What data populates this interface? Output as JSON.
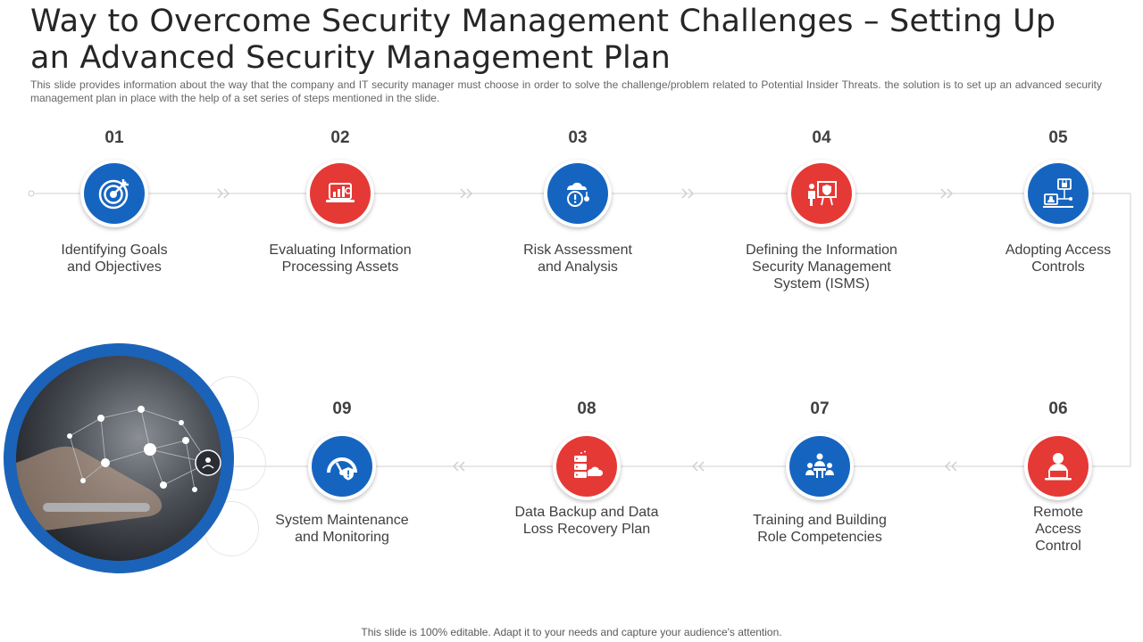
{
  "slide": {
    "title": "Way to Overcome Security Management Challenges – Setting Up an Advanced Security Management Plan",
    "subtitle": "This slide provides information about the way that the company and IT security manager must choose in order to solve the challenge/problem related to Potential Insider Threats. the solution is to set up an advanced security management plan in place with the help of a set series of steps mentioned in the slide.",
    "footer": "This slide is 100% editable. Adapt it to your needs and capture your audience's attention."
  },
  "colors": {
    "blue": "#1565c0",
    "red": "#e53935",
    "line": "#d9d9d9"
  },
  "steps": [
    {
      "number": "01",
      "label": "Identifying Goals and Objectives",
      "icon": "target-icon",
      "color": "blue"
    },
    {
      "number": "02",
      "label": "Evaluating Information Processing Assets",
      "icon": "analytics-laptop-icon",
      "color": "red"
    },
    {
      "number": "03",
      "label": "Risk Assessment and Analysis",
      "icon": "risk-cloud-icon",
      "color": "blue"
    },
    {
      "number": "04",
      "label": "Defining the Information Security Management System (ISMS)",
      "icon": "presentation-shield-icon",
      "color": "red"
    },
    {
      "number": "05",
      "label": "Adopting Access Controls",
      "icon": "network-lock-icon",
      "color": "blue"
    },
    {
      "number": "06",
      "label": "Remote Access Control",
      "icon": "user-laptop-icon",
      "color": "red"
    },
    {
      "number": "07",
      "label": "Training and Building Role Competencies",
      "icon": "team-training-icon",
      "color": "blue"
    },
    {
      "number": "08",
      "label": "Data Backup and Data Loss Recovery Plan",
      "icon": "server-cloud-icon",
      "color": "red"
    },
    {
      "number": "09",
      "label": "System Maintenance and Monitoring",
      "icon": "gauge-alert-icon",
      "color": "blue"
    }
  ]
}
